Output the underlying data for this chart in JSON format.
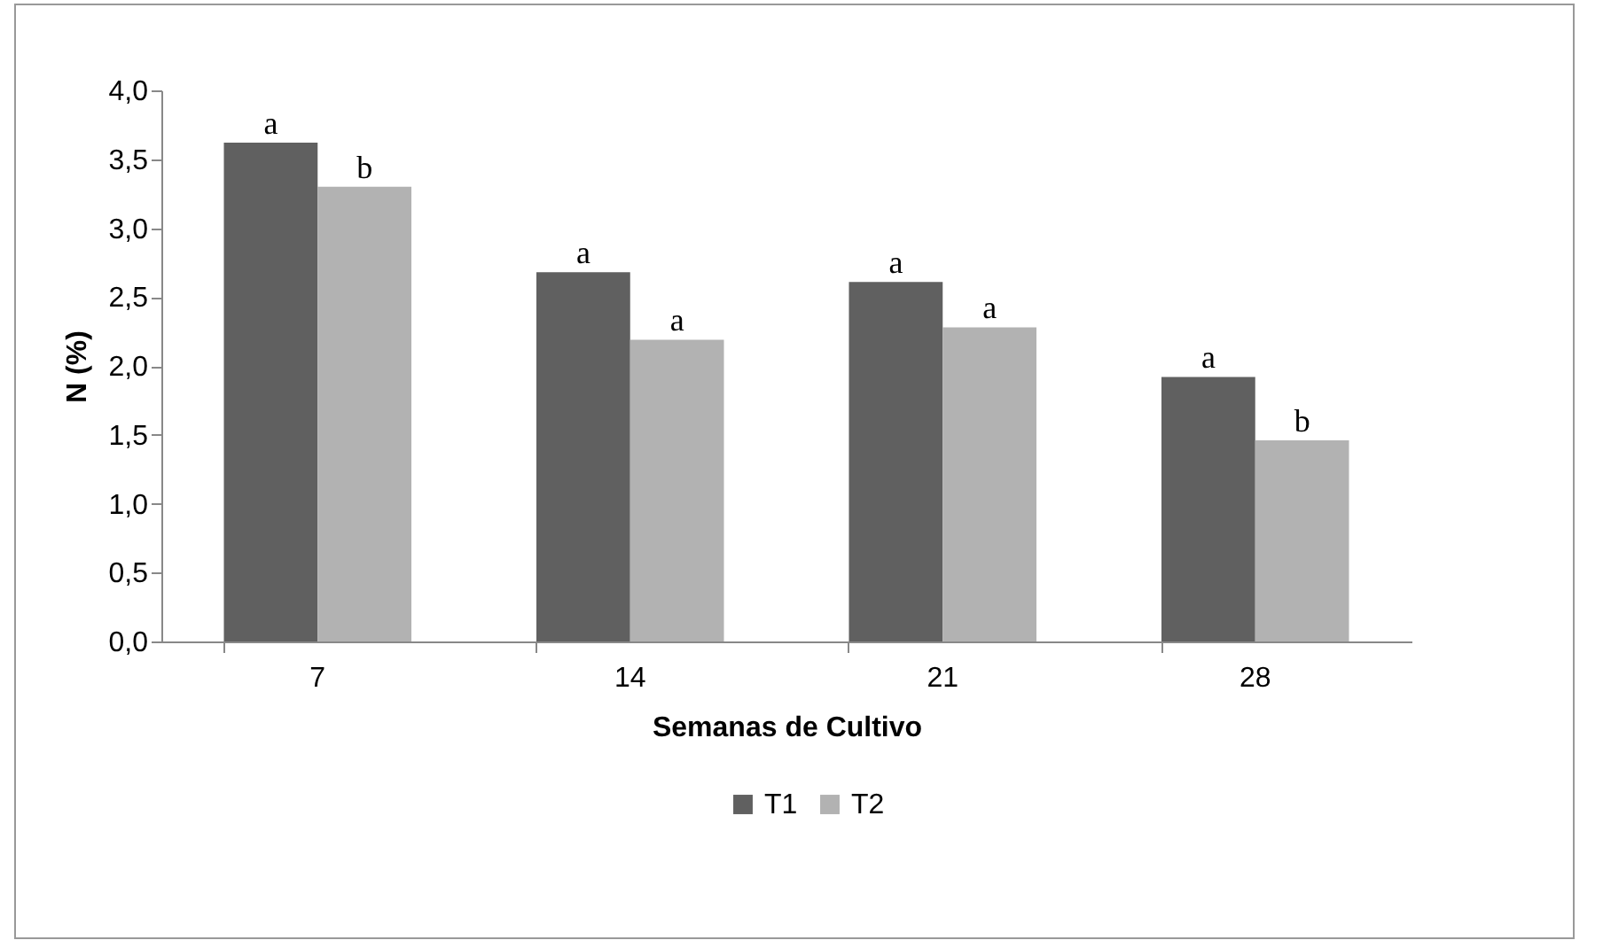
{
  "chart_data": {
    "type": "bar",
    "xlabel": "Semanas de Cultivo",
    "ylabel": "N (%)",
    "categories": [
      "7",
      "14",
      "21",
      "28"
    ],
    "series": [
      {
        "name": "T1",
        "color": "#606060",
        "values": [
          3.62,
          2.68,
          2.61,
          1.92
        ]
      },
      {
        "name": "T2",
        "color": "#b2b2b2",
        "values": [
          3.3,
          2.19,
          2.28,
          1.46
        ]
      }
    ],
    "ylim": [
      0,
      4
    ],
    "yticks": [
      {
        "value": 0,
        "label": "0,0"
      },
      {
        "value": 0.5,
        "label": "0,5"
      },
      {
        "value": 1,
        "label": "1,0"
      },
      {
        "value": 1.5,
        "label": "1,5"
      },
      {
        "value": 2,
        "label": "2,0"
      },
      {
        "value": 2.5,
        "label": "2,5"
      },
      {
        "value": 3,
        "label": "3,0"
      },
      {
        "value": 3.5,
        "label": "3,5"
      },
      {
        "value": 4,
        "label": "4,0"
      }
    ],
    "annotations": [
      {
        "text": "a",
        "x": "7",
        "y": 3.62
      },
      {
        "text": "b",
        "x": "7",
        "y": 3.3
      },
      {
        "text": "a",
        "x": "14",
        "y": 2.68
      },
      {
        "text": "a",
        "x": "14",
        "y": 2.19
      },
      {
        "text": "a",
        "x": "21",
        "y": 2.61
      },
      {
        "text": "a",
        "x": "21",
        "y": 2.28
      },
      {
        "text": "a",
        "x": "28",
        "y": 1.92
      },
      {
        "text": "b",
        "x": "28",
        "y": 1.46
      }
    ],
    "grid": false,
    "legend": "bottom"
  }
}
